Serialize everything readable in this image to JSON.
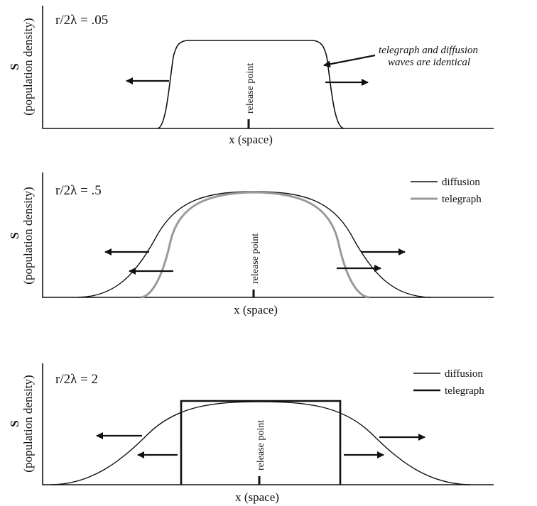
{
  "panels": [
    {
      "param": "r/2λ = .05",
      "xlabel": "x (space)",
      "ylabel_symbol": "S",
      "ylabel_text": "(population density)",
      "release_label": "release point",
      "note_line1": "telegraph and diffusion",
      "note_line2": "waves are identical"
    },
    {
      "param": "r/2λ = .5",
      "xlabel": "x (space)",
      "ylabel_symbol": "S",
      "ylabel_text": "(population density)",
      "release_label": "release point",
      "legend": [
        "diffusion",
        "telegraph"
      ]
    },
    {
      "param": "r/2λ = 2",
      "xlabel": "x (space)",
      "ylabel_symbol": "S",
      "ylabel_text": "(population density)",
      "release_label": "release point",
      "legend": [
        "diffusion",
        "telegraph"
      ]
    }
  ],
  "colors": {
    "diffusion": "#111111",
    "telegraph": "#9a9a9a"
  }
}
